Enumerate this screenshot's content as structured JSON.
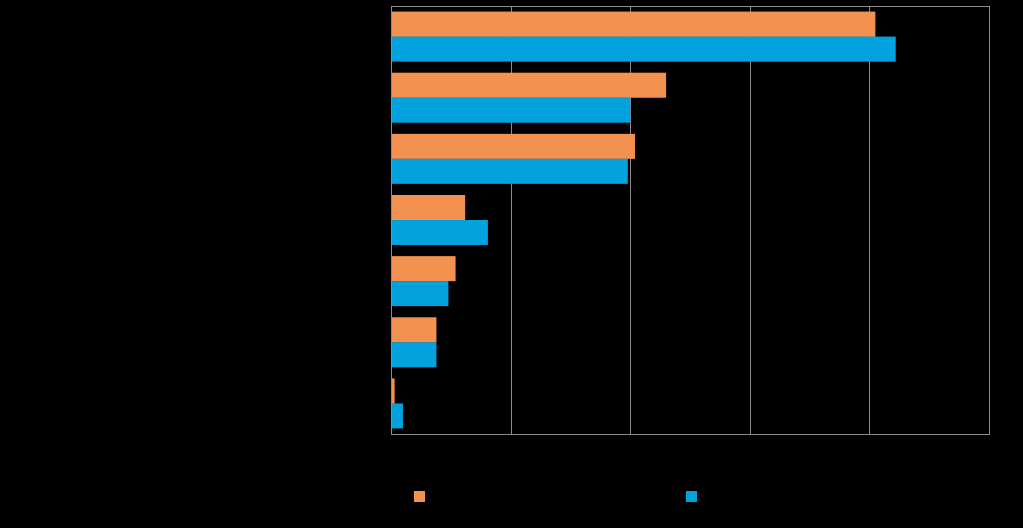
{
  "chart_data": {
    "type": "bar",
    "orientation": "horizontal",
    "categories": [
      "",
      "",
      "",
      "",
      "",
      "",
      ""
    ],
    "series": [
      {
        "color": "#F39150",
        "values": [
          40.5,
          23.0,
          20.4,
          6.2,
          5.4,
          3.8,
          0.3
        ]
      },
      {
        "color": "#02A2DF",
        "values": [
          42.2,
          20.0,
          19.8,
          8.1,
          4.8,
          3.8,
          1.0
        ]
      }
    ],
    "xlim": [
      0,
      50
    ],
    "x_ticks": [
      0,
      10,
      20,
      30,
      40,
      50
    ],
    "grid": true,
    "legend_position": "bottom",
    "background": "#000000",
    "axis_color": "#8C8C8C"
  }
}
